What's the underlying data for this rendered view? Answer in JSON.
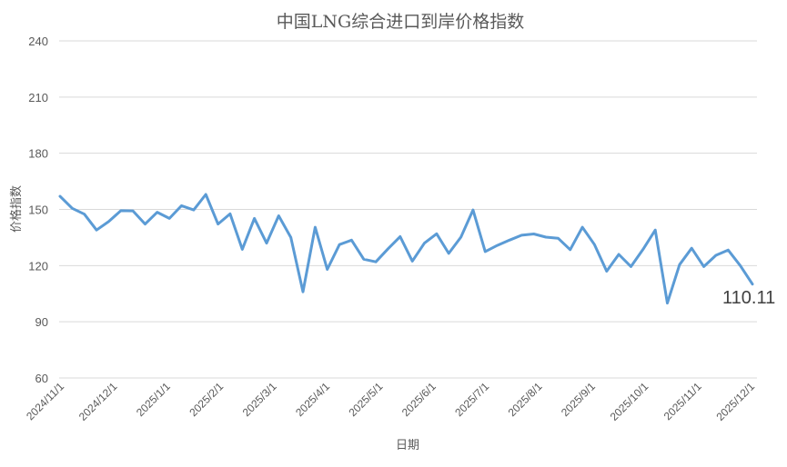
{
  "chart_data": {
    "type": "line",
    "title": "中国LNG综合进口到岸价格指数",
    "xlabel": "日期",
    "ylabel": "价格指数",
    "ylim": [
      60,
      240
    ],
    "yticks": [
      60,
      90,
      120,
      150,
      180,
      210,
      240
    ],
    "grid": true,
    "legend": "none",
    "x_tick_labels": [
      "2024/11/1",
      "2024/12/1",
      "2025/1/1",
      "2025/2/1",
      "2025/3/1",
      "2025/4/1",
      "2025/5/1",
      "2025/6/1",
      "2025/7/1",
      "2025/8/1",
      "2025/9/1",
      "2025/10/1",
      "2025/11/1",
      "2025/12/1"
    ],
    "end_label": "110.11",
    "series": [
      {
        "name": "价格指数",
        "color": "#5b9bd5",
        "values": [
          157,
          150.6,
          147.5,
          139,
          143.5,
          149.3,
          149.2,
          142.2,
          148.5,
          145.2,
          152,
          149.7,
          158,
          142.2,
          147.6,
          128.7,
          145.2,
          132,
          146.6,
          135,
          106,
          140.5,
          118,
          131.2,
          133.6,
          123.4,
          122,
          129,
          135.5,
          122.4,
          132,
          137,
          126.5,
          135.2,
          149.7,
          127.5,
          130.8,
          133.6,
          136.2,
          136.9,
          135.2,
          134.6,
          128.5,
          140.5,
          131.2,
          117,
          126,
          119.5,
          128.7,
          139,
          100,
          120.5,
          129.3,
          119.5,
          125.5,
          128.3,
          120,
          110.11
        ]
      }
    ]
  }
}
